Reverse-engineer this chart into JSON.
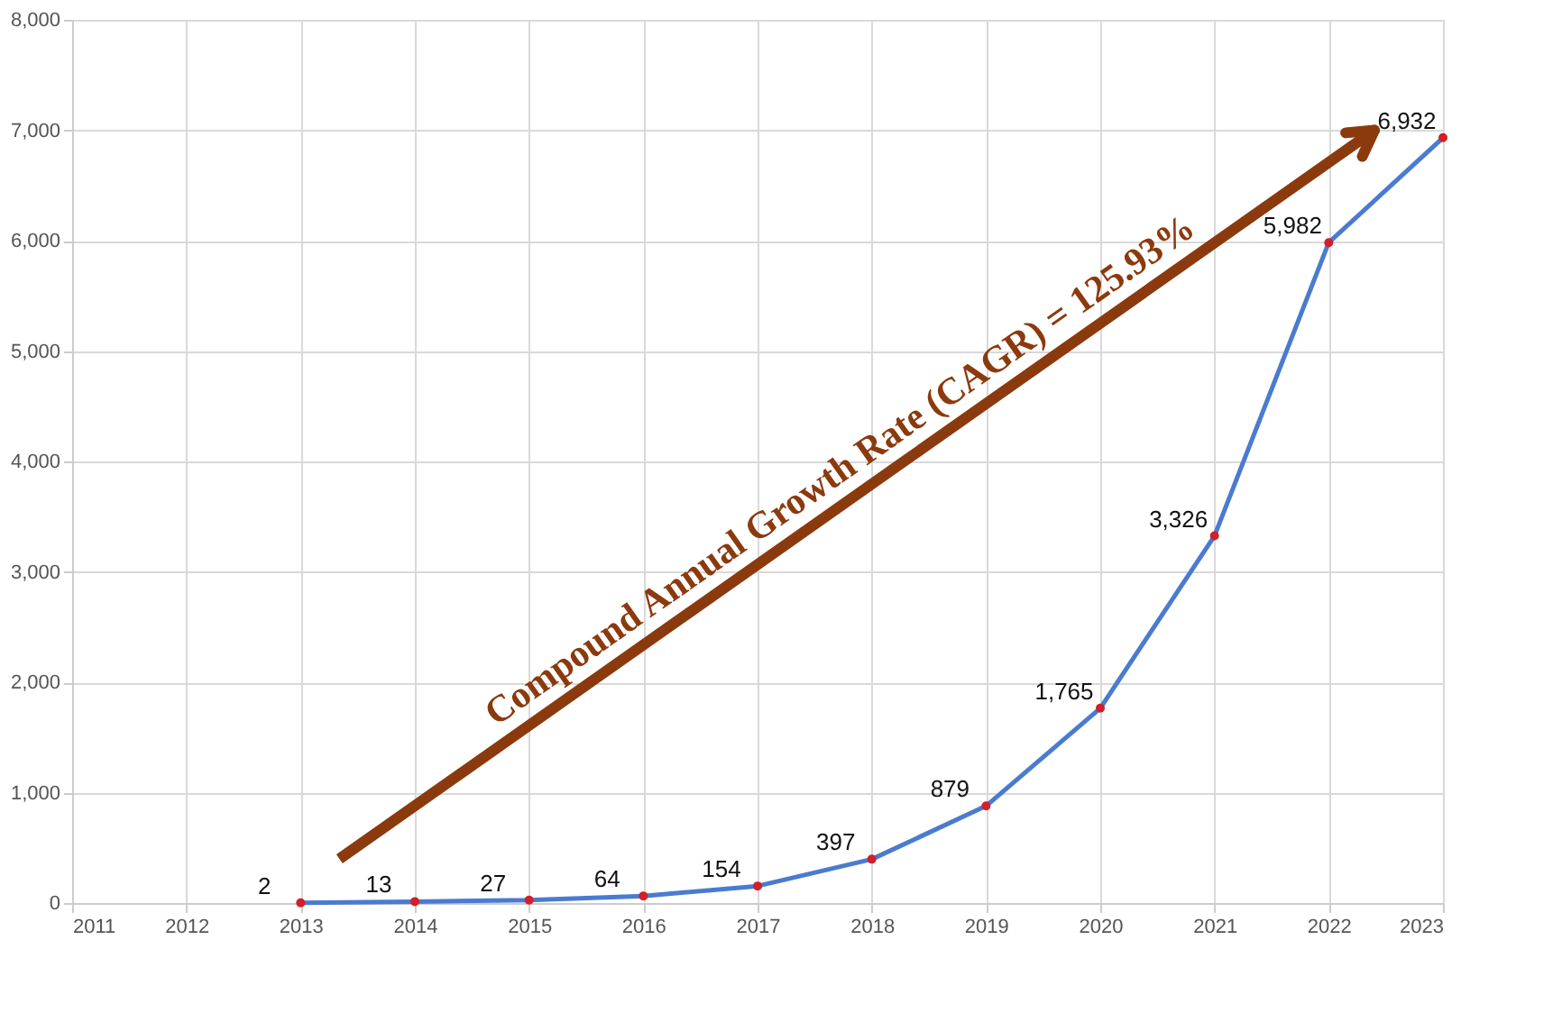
{
  "chart_data": {
    "type": "line",
    "x": [
      2013,
      2014,
      2015,
      2016,
      2017,
      2018,
      2019,
      2020,
      2021,
      2022,
      2023
    ],
    "series": [
      {
        "color": "#4a7bd0",
        "colors": [
          "#d0202a",
          "#d0202a",
          "#d0202a",
          "#d0202a",
          "#d0202a",
          "#d0202a",
          "#d0202a",
          "#d0202a",
          "#d0202a",
          "#d0202a",
          "#d0202a"
        ],
        "values": [
          2,
          13,
          27,
          64,
          154,
          397,
          879,
          1765,
          3326,
          5982,
          6932
        ],
        "value_labels": [
          "2",
          "13",
          "27",
          "64",
          "154",
          "397",
          "879",
          "1,765",
          "3,326",
          "5,982",
          "6,932"
        ]
      }
    ],
    "xlim": [
      2011,
      2023
    ],
    "xticks": [
      2011,
      2012,
      2013,
      2014,
      2015,
      2016,
      2017,
      2018,
      2019,
      2020,
      2021,
      2022,
      2023
    ],
    "ylim": [
      0,
      8000
    ],
    "yticks": [
      0,
      {
        "value": 1000,
        "label": "1,000"
      },
      {
        "value": 2000,
        "label": "2,000"
      },
      {
        "value": 3000,
        "label": "3,000"
      },
      {
        "value": 4000,
        "label": "4,000"
      },
      {
        "value": 5000,
        "label": "5,000"
      },
      {
        "value": 6000,
        "label": "6,000"
      },
      {
        "value": 7000,
        "label": "7,000"
      },
      {
        "value": 8000,
        "label": "8,000"
      }
    ],
    "annotations": [
      "Compound Annual Growth Rate (CAGR) = 125.93%"
    ],
    "grid": true,
    "marker": "circle",
    "line_style": "solid"
  }
}
